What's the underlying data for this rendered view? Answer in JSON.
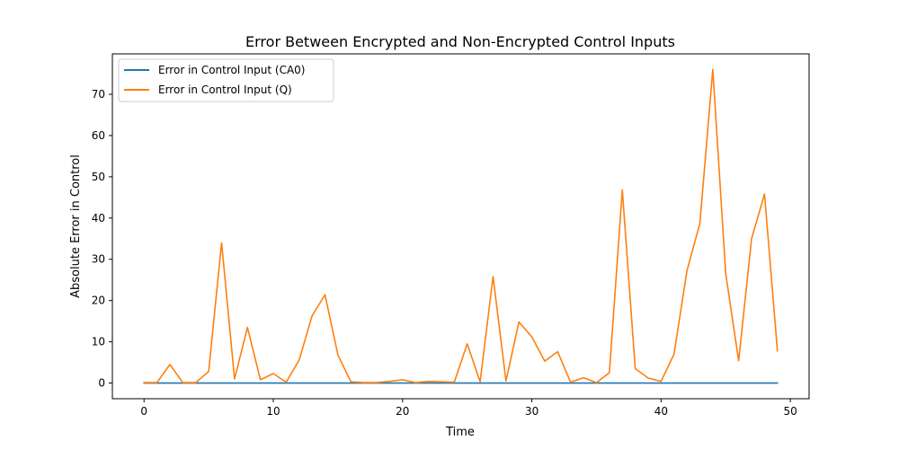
{
  "chart_data": {
    "type": "line",
    "title": "Error Between Encrypted and Non-Encrypted Control Inputs",
    "xlabel": "Time",
    "ylabel": "Absolute Error in Control",
    "xlim": [
      -2.45,
      51.45
    ],
    "ylim": [
      -3.8,
      79.8
    ],
    "xticks": [
      0,
      10,
      20,
      30,
      40,
      50
    ],
    "yticks": [
      0,
      10,
      20,
      30,
      40,
      50,
      60,
      70
    ],
    "grid": false,
    "legend_position": "top-left",
    "x": [
      0,
      1,
      2,
      3,
      4,
      5,
      6,
      7,
      8,
      9,
      10,
      11,
      12,
      13,
      14,
      15,
      16,
      17,
      18,
      19,
      20,
      21,
      22,
      23,
      24,
      25,
      26,
      27,
      28,
      29,
      30,
      31,
      32,
      33,
      34,
      35,
      36,
      37,
      38,
      39,
      40,
      41,
      42,
      43,
      44,
      45,
      46,
      47,
      48,
      49
    ],
    "series": [
      {
        "name": "Error in Control Input (CA0)",
        "color": "#1f77b4",
        "values": [
          0,
          0,
          0,
          0,
          0,
          0,
          0,
          0,
          0,
          0,
          0,
          0,
          0,
          0,
          0,
          0,
          0,
          0,
          0,
          0,
          0,
          0,
          0,
          0,
          0,
          0,
          0,
          0,
          0,
          0,
          0,
          0,
          0,
          0,
          0,
          0,
          0,
          0,
          0,
          0,
          0,
          0,
          0,
          0,
          0,
          0,
          0,
          0,
          0,
          0
        ]
      },
      {
        "name": "Error in Control Input (Q)",
        "color": "#ff7f0e",
        "values": [
          0.1,
          0.1,
          4.5,
          0.1,
          0.1,
          2.8,
          34.0,
          1.0,
          13.5,
          0.8,
          2.3,
          0.2,
          5.6,
          16.3,
          21.4,
          6.8,
          0.3,
          0.1,
          0.1,
          0.4,
          0.8,
          0.1,
          0.4,
          0.3,
          0.2,
          9.5,
          0.3,
          25.8,
          0.5,
          14.8,
          11.2,
          5.3,
          7.6,
          0.2,
          1.3,
          0.1,
          2.5,
          46.8,
          3.5,
          1.2,
          0.4,
          7.0,
          27.2,
          38.7,
          76.0,
          26.5,
          5.4,
          35.0,
          45.8,
          7.8
        ]
      }
    ]
  }
}
